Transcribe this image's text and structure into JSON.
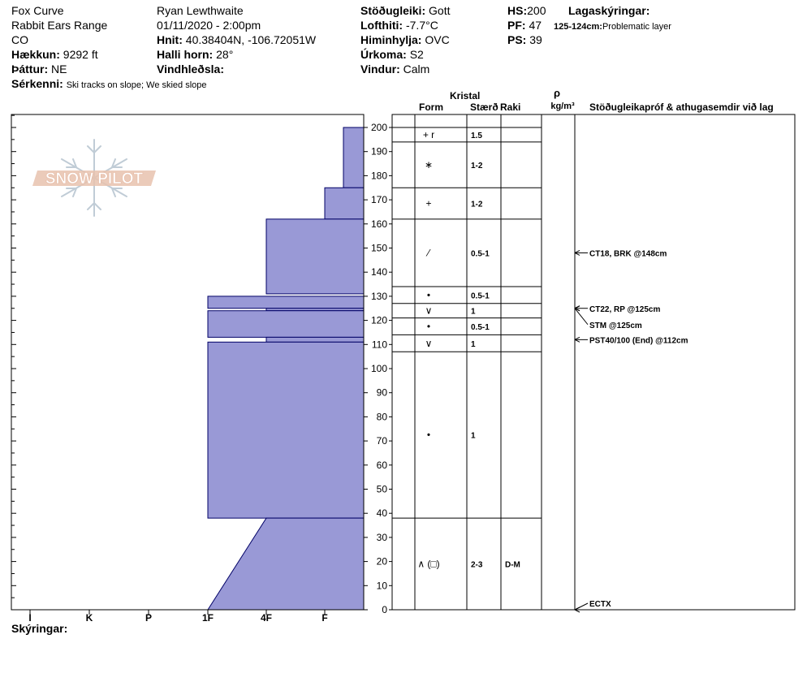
{
  "header": {
    "site": "Fox Curve",
    "range": "Rabbit Ears Range",
    "state": "CO",
    "elevation_label": "Hækkun:",
    "elevation": "9292 ft",
    "aspect_label": "Þáttur:",
    "aspect": "NE",
    "features_label": "Sérkenni:",
    "features": "Ski tracks on slope; We skied slope",
    "observer": "Ryan Lewthwaite",
    "datetime": "01/11/2020 - 2:00pm",
    "coords_label": "Hnit:",
    "coords": "40.38404N, -106.72051W",
    "slope_label": "Halli horn:",
    "slope": "28°",
    "wind_load_label": "Vindhleðsla:",
    "wind_load": "",
    "stability_label": "Stöðugleiki:",
    "stability": "Gott",
    "air_temp_label": "Lofthiti:",
    "air_temp": "-7.7°C",
    "sky_label": "Himinhylja:",
    "sky": "OVC",
    "precip_label": "Úrkoma:",
    "precip": "S2",
    "wind_label": "Vindur:",
    "wind": "Calm",
    "hs_label": "HS:",
    "hs": "200",
    "pf_label": "PF:",
    "pf": "47",
    "ps_label": "PS:",
    "ps": "39",
    "layer_notes_label": "Lagaskýringar:",
    "layer_note_range": "125-124cm:",
    "layer_note_text": "Problematic layer",
    "notes_label": "Skýringar:",
    "logo_text": "SNOW PILOT"
  },
  "columns": {
    "crystal": "Kristal",
    "form": "Form",
    "size": "Stærð",
    "moisture": "Raki",
    "density_symbol": "ρ",
    "density_unit": "kg/m³",
    "tests": "Stöðugleikapróf & athugasemdir við lag"
  },
  "colors": {
    "hardness_fill": "#9999d6",
    "hardness_stroke": "#000066"
  },
  "chart_data": {
    "type": "snow-profile",
    "depth_ticks": [
      0,
      10,
      20,
      30,
      40,
      50,
      60,
      70,
      80,
      90,
      100,
      110,
      120,
      130,
      140,
      150,
      160,
      170,
      180,
      190,
      200
    ],
    "hardness_labels": [
      "I",
      "K",
      "P",
      "1F",
      "4F",
      "F"
    ],
    "hardness_profile": [
      {
        "top": 200,
        "bottom": 175,
        "hardness": "F-"
      },
      {
        "top": 175,
        "bottom": 162,
        "hardness": "F"
      },
      {
        "top": 162,
        "bottom": 131,
        "hardness": "4F"
      },
      {
        "top": 130,
        "bottom": 125,
        "hardness": "1F"
      },
      {
        "top": 125,
        "bottom": 124,
        "hardness": "4F"
      },
      {
        "top": 124,
        "bottom": 113,
        "hardness": "1F"
      },
      {
        "top": 113,
        "bottom": 111,
        "hardness": "4F"
      },
      {
        "top": 111,
        "bottom": 38,
        "hardness": "1F"
      },
      {
        "top": 38,
        "bottom": 0,
        "hardness": "4F to 1F"
      }
    ],
    "layers": [
      {
        "top": 200,
        "bottom": 194,
        "form": "+ r",
        "size": "1.5",
        "moisture": ""
      },
      {
        "top": 194,
        "bottom": 175,
        "form": "∗",
        "size": "1-2",
        "moisture": ""
      },
      {
        "top": 175,
        "bottom": 162,
        "form": "+",
        "size": "1-2",
        "moisture": ""
      },
      {
        "top": 162,
        "bottom": 134,
        "form": "⁄",
        "size": "0.5-1",
        "moisture": ""
      },
      {
        "top": 134,
        "bottom": 127,
        "form": "•",
        "size": "0.5-1",
        "moisture": ""
      },
      {
        "top": 127,
        "bottom": 121,
        "form": "∨",
        "size": "1",
        "moisture": ""
      },
      {
        "top": 121,
        "bottom": 114,
        "form": "•",
        "size": "0.5-1",
        "moisture": ""
      },
      {
        "top": 114,
        "bottom": 107,
        "form": "∨",
        "size": "1",
        "moisture": ""
      },
      {
        "top": 107,
        "bottom": 38,
        "form": "•",
        "size": "1",
        "moisture": ""
      },
      {
        "top": 38,
        "bottom": 0,
        "form": "∧ (□)",
        "size": "2-3",
        "moisture": "D-M"
      }
    ],
    "tests": [
      {
        "depth": 148,
        "text": "CT18, BRK @148cm"
      },
      {
        "depth": 125,
        "text": "CT22, RP @125cm"
      },
      {
        "depth": 125,
        "text": "STM @125cm"
      },
      {
        "depth": 112,
        "text": "PST40/100 (End) @112cm"
      },
      {
        "depth": 0,
        "text": "ECTX"
      }
    ]
  }
}
